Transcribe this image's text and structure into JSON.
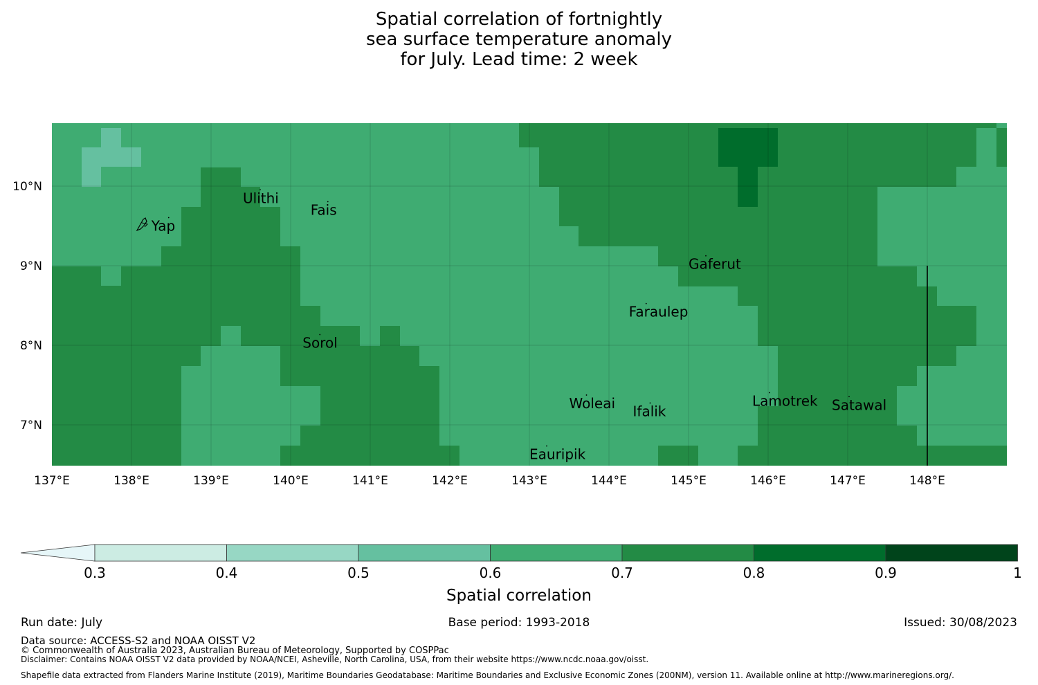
{
  "title": {
    "line1": "Spatial correlation of fortnightly",
    "line2": "sea surface temperature anomaly",
    "line3": "for July. Lead time: 2 week"
  },
  "map": {
    "lon_range": [
      137,
      149
    ],
    "lat_range": [
      6.5,
      10.8
    ],
    "lon_ticks": [
      {
        "value": 137,
        "label": "137°E"
      },
      {
        "value": 138,
        "label": "138°E"
      },
      {
        "value": 139,
        "label": "139°E"
      },
      {
        "value": 140,
        "label": "140°E"
      },
      {
        "value": 141,
        "label": "141°E"
      },
      {
        "value": 142,
        "label": "142°E"
      },
      {
        "value": 143,
        "label": "143°E"
      },
      {
        "value": 144,
        "label": "144°E"
      },
      {
        "value": 145,
        "label": "145°E"
      },
      {
        "value": 146,
        "label": "146°E"
      },
      {
        "value": 147,
        "label": "147°E"
      },
      {
        "value": 148,
        "label": "148°E"
      }
    ],
    "lat_ticks": [
      {
        "value": 10,
        "label": "10°N"
      },
      {
        "value": 9,
        "label": "9°N"
      },
      {
        "value": 8,
        "label": "8°N"
      },
      {
        "value": 7,
        "label": "7°N"
      }
    ],
    "places": [
      {
        "name": "Yap",
        "lon": 138.25,
        "lat": 9.5
      },
      {
        "name": "Ulithi",
        "lon": 139.4,
        "lat": 9.85
      },
      {
        "name": "Fais",
        "lon": 140.25,
        "lat": 9.7
      },
      {
        "name": "Gaferut",
        "lon": 145.0,
        "lat": 9.02
      },
      {
        "name": "Faraulep",
        "lon": 144.25,
        "lat": 8.42
      },
      {
        "name": "Sorol",
        "lon": 140.15,
        "lat": 8.03
      },
      {
        "name": "Woleai",
        "lon": 143.5,
        "lat": 7.27
      },
      {
        "name": "Ifalik",
        "lon": 144.3,
        "lat": 7.17
      },
      {
        "name": "Lamotrek",
        "lon": 145.8,
        "lat": 7.3
      },
      {
        "name": "Satawal",
        "lon": 146.8,
        "lat": 7.25
      },
      {
        "name": "Eauripik",
        "lon": 143.0,
        "lat": 6.63
      }
    ]
  },
  "colorbar": {
    "ticks": [
      "0.3",
      "0.4",
      "0.5",
      "0.6",
      "0.7",
      "0.8",
      "0.9",
      "1"
    ],
    "colors": [
      "#ccece3",
      "#97d7c4",
      "#65c0a0",
      "#3fac72",
      "#238b45",
      "#006d2c",
      "#00441b"
    ],
    "extend_color": "#e6f6f8",
    "label": "Spatial correlation"
  },
  "footer": {
    "run_date": "Run date: July",
    "base_period": "Base period: 1993-2018",
    "issued": "Issued: 30/08/2023",
    "data_source": "Data source: ACCESS-S2 and NOAA OISST V2",
    "copyright": "© Commonwealth of Australia 2023, Australian Bureau of Meteorology, Supported by COSPPac",
    "disclaimer": "Disclaimer: Contains NOAA OISST V2 data provided by NOAA/NCEI, Asheville, North Carolina, USA, from their website https://www.ncdc.noaa.gov/oisst.",
    "shapefile": "Shapefile data extracted from Flanders Marine Institute (2019), Maritime Boundaries Geodatabase: Maritime Boundaries and Exclusive Economic Zones (200NM), version 11. Available online at http://www.marineregions.org/."
  }
}
